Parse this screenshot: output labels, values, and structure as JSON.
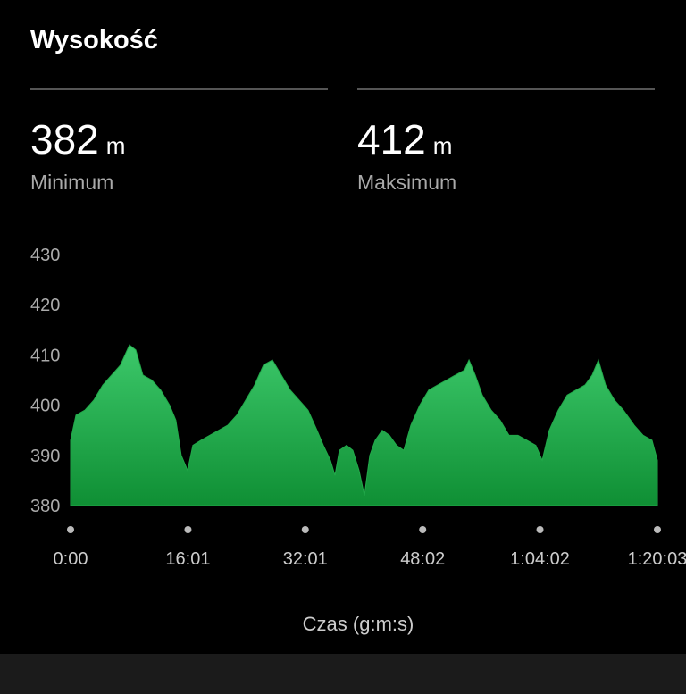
{
  "header": {
    "title": "Wysokość"
  },
  "stats": [
    {
      "value": 382,
      "unit": "m",
      "label": "Minimum"
    },
    {
      "value": 412,
      "unit": "m",
      "label": "Maksimum"
    }
  ],
  "chart_data": {
    "type": "area",
    "x_label": "Czas (g:m:s)",
    "color": "#22a94a",
    "x": [
      0,
      44,
      117,
      190,
      263,
      336,
      409,
      482,
      534,
      592,
      665,
      738,
      811,
      862,
      906,
      958,
      1001,
      1067,
      1140,
      1213,
      1286,
      1360,
      1433,
      1506,
      1579,
      1652,
      1725,
      1798,
      1871,
      1944,
      2017,
      2069,
      2127,
      2164,
      2200,
      2259,
      2310,
      2361,
      2405,
      2449,
      2493,
      2551,
      2610,
      2668,
      2727,
      2785,
      2858,
      2931,
      3004,
      3077,
      3150,
      3224,
      3261,
      3312,
      3370,
      3443,
      3516,
      3589,
      3662,
      3735,
      3808,
      3860,
      3918,
      3991,
      4064,
      4137,
      4210,
      4269,
      4320,
      4379,
      4452,
      4525,
      4613,
      4686,
      4759,
      4803
    ],
    "values": [
      393,
      398,
      399,
      401,
      404,
      406,
      408,
      412,
      411,
      406,
      405,
      403,
      400,
      397,
      390,
      387,
      392,
      393,
      394,
      395,
      396,
      398,
      401,
      404,
      408,
      409,
      406,
      403,
      401,
      399,
      395,
      392,
      389,
      386,
      391,
      392,
      391,
      387,
      382,
      390,
      393,
      395,
      394,
      392,
      391,
      396,
      400,
      403,
      404,
      405,
      406,
      407,
      409,
      406,
      402,
      399,
      397,
      394,
      394,
      393,
      392,
      389,
      395,
      399,
      402,
      403,
      404,
      406,
      409,
      404,
      401,
      399,
      396,
      394,
      393,
      389
    ],
    "xlim": [
      0,
      4803
    ],
    "xticks": [
      {
        "value": 0,
        "label": "0:00"
      },
      {
        "value": 961,
        "label": "16:01"
      },
      {
        "value": 1921,
        "label": "32:01"
      },
      {
        "value": 2882,
        "label": "48:02"
      },
      {
        "value": 3842,
        "label": "1:04:02"
      },
      {
        "value": 4803,
        "label": "1:20:03"
      }
    ],
    "ylim": [
      380,
      430
    ],
    "yticks": [
      380,
      390,
      400,
      410,
      420,
      430
    ],
    "grid": false
  }
}
